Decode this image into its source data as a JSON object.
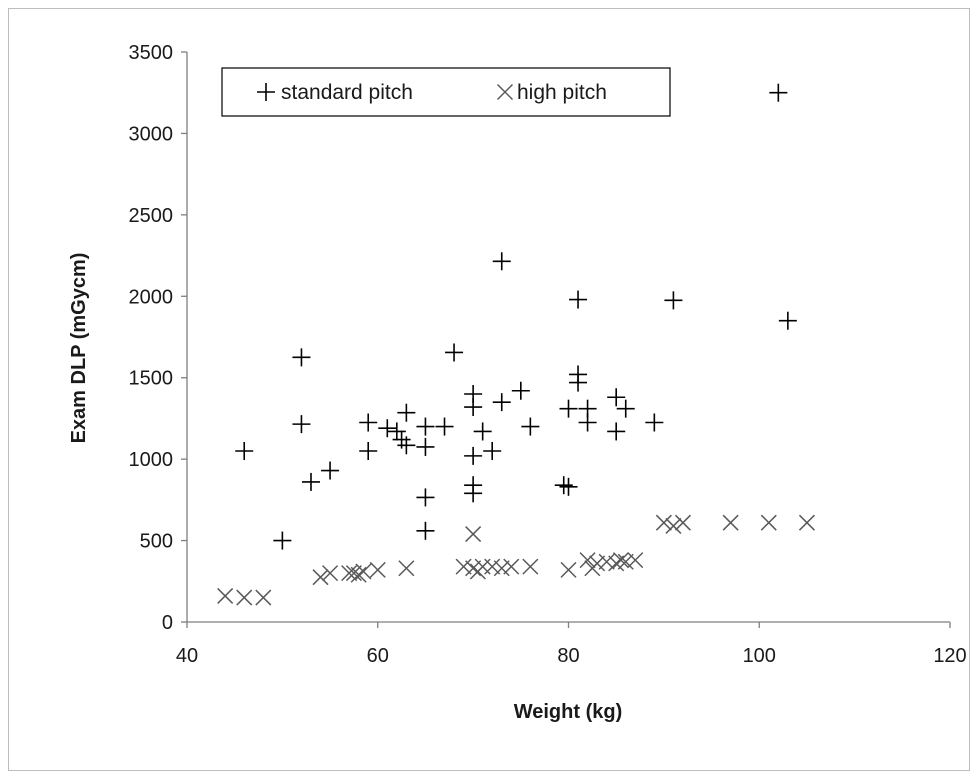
{
  "chart_data": {
    "type": "scatter",
    "title": "",
    "xlabel": "Weight (kg)",
    "ylabel": "Exam DLP (mGycm)",
    "xlim": [
      40,
      120
    ],
    "ylim": [
      0,
      3500
    ],
    "x_ticks": [
      "40",
      "60",
      "80",
      "100",
      "120"
    ],
    "y_ticks": [
      "0",
      "500",
      "1000",
      "1500",
      "2000",
      "2500",
      "3000",
      "3500"
    ],
    "grid": false,
    "legend_position": "top-left",
    "series": [
      {
        "name": "standard pitch",
        "marker": "plus",
        "color": "#000000",
        "points": [
          [
            46,
            1050
          ],
          [
            50,
            500
          ],
          [
            52,
            1625
          ],
          [
            52,
            1215
          ],
          [
            53,
            860
          ],
          [
            55,
            930
          ],
          [
            59,
            1225
          ],
          [
            59,
            1050
          ],
          [
            61,
            1190
          ],
          [
            62,
            1170
          ],
          [
            62.5,
            1120
          ],
          [
            63,
            1285
          ],
          [
            63,
            1085
          ],
          [
            65,
            1200
          ],
          [
            65,
            1075
          ],
          [
            65,
            765
          ],
          [
            65,
            560
          ],
          [
            67,
            1200
          ],
          [
            68,
            1655
          ],
          [
            70,
            1400
          ],
          [
            70,
            1320
          ],
          [
            70,
            1020
          ],
          [
            70,
            840
          ],
          [
            70,
            790
          ],
          [
            71,
            1170
          ],
          [
            72,
            1050
          ],
          [
            73,
            2215
          ],
          [
            73,
            1350
          ],
          [
            75,
            1420
          ],
          [
            76,
            1200
          ],
          [
            79.5,
            840
          ],
          [
            80,
            830
          ],
          [
            80,
            1310
          ],
          [
            81,
            1980
          ],
          [
            81,
            1520
          ],
          [
            81,
            1470
          ],
          [
            82,
            1310
          ],
          [
            82,
            1225
          ],
          [
            85,
            1380
          ],
          [
            85,
            1170
          ],
          [
            86,
            1310
          ],
          [
            89,
            1225
          ],
          [
            91,
            1975
          ],
          [
            102,
            3250
          ],
          [
            103,
            1850
          ]
        ]
      },
      {
        "name": "high pitch",
        "marker": "cross",
        "color": "#595959",
        "points": [
          [
            44,
            160
          ],
          [
            46,
            150
          ],
          [
            48,
            150
          ],
          [
            54,
            275
          ],
          [
            55,
            300
          ],
          [
            57,
            300
          ],
          [
            57.5,
            300
          ],
          [
            58,
            290
          ],
          [
            58.5,
            310
          ],
          [
            60,
            320
          ],
          [
            63,
            330
          ],
          [
            69,
            340
          ],
          [
            70,
            540
          ],
          [
            70,
            330
          ],
          [
            70.5,
            310
          ],
          [
            71,
            340
          ],
          [
            72,
            340
          ],
          [
            73,
            330
          ],
          [
            74,
            340
          ],
          [
            76,
            340
          ],
          [
            80,
            320
          ],
          [
            82,
            380
          ],
          [
            82.5,
            330
          ],
          [
            83,
            360
          ],
          [
            84,
            370
          ],
          [
            85,
            360
          ],
          [
            85.5,
            380
          ],
          [
            86,
            370
          ],
          [
            87,
            380
          ],
          [
            90,
            610
          ],
          [
            91,
            590
          ],
          [
            92,
            610
          ],
          [
            97,
            610
          ],
          [
            101,
            610
          ],
          [
            105,
            610
          ]
        ]
      }
    ]
  }
}
